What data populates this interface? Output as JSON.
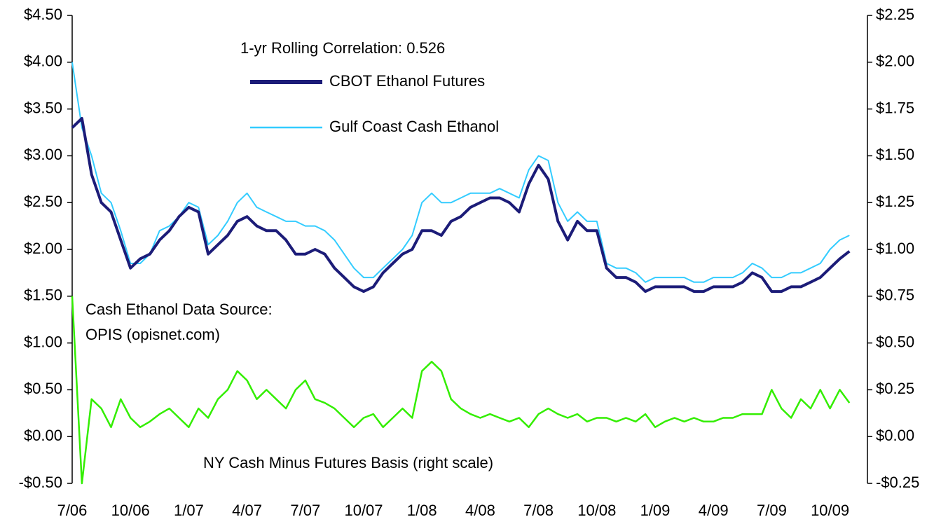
{
  "chart_data": {
    "type": "line",
    "annotations": [
      "1-yr Rolling Correlation:  0.526",
      "Cash Ethanol Data Source:",
      "OPIS (opisnet.com)"
    ],
    "categories": [
      "7/06",
      null,
      null,
      null,
      null,
      null,
      "10/06",
      null,
      null,
      null,
      null,
      null,
      "1/07",
      null,
      null,
      null,
      null,
      null,
      "4/07",
      null,
      null,
      null,
      null,
      null,
      "7/07",
      null,
      null,
      null,
      null,
      null,
      "10/07",
      null,
      null,
      null,
      null,
      null,
      "1/08",
      null,
      null,
      null,
      null,
      null,
      "4/08",
      null,
      null,
      null,
      null,
      null,
      "7/08",
      null,
      null,
      null,
      null,
      null,
      "10/08",
      null,
      null,
      null,
      null,
      null,
      "1/09",
      null,
      null,
      null,
      null,
      null,
      "4/09",
      null,
      null,
      null,
      null,
      null,
      "7/09",
      null,
      null,
      null,
      null,
      null,
      "10/09",
      null,
      null
    ],
    "series": [
      {
        "name": "CBOT Ethanol Futures",
        "color": "#1c1c78",
        "values": [
          3.3,
          3.4,
          2.8,
          2.5,
          2.4,
          2.1,
          1.8,
          1.9,
          1.95,
          2.1,
          2.2,
          2.35,
          2.45,
          2.4,
          1.95,
          2.05,
          2.15,
          2.3,
          2.35,
          2.25,
          2.2,
          2.2,
          2.1,
          1.95,
          1.95,
          2.0,
          1.95,
          1.8,
          1.7,
          1.6,
          1.55,
          1.6,
          1.75,
          1.85,
          1.95,
          2.0,
          2.2,
          2.2,
          2.15,
          2.3,
          2.35,
          2.45,
          2.5,
          2.55,
          2.55,
          2.5,
          2.4,
          2.7,
          2.9,
          2.75,
          2.3,
          2.1,
          2.3,
          2.2,
          2.2,
          1.8,
          1.7,
          1.7,
          1.65,
          1.55,
          1.6,
          1.6,
          1.6,
          1.6,
          1.55,
          1.55,
          1.6,
          1.6,
          1.6,
          1.65,
          1.75,
          1.7,
          1.55,
          1.55,
          1.6,
          1.6,
          1.65,
          1.7,
          1.8,
          1.9,
          1.98
        ]
      },
      {
        "name": "Gulf Coast Cash Ethanol",
        "color": "#33ccff",
        "values": [
          4.0,
          3.3,
          3.0,
          2.6,
          2.5,
          2.2,
          1.85,
          1.85,
          1.95,
          2.2,
          2.25,
          2.35,
          2.5,
          2.45,
          2.05,
          2.15,
          2.3,
          2.5,
          2.6,
          2.45,
          2.4,
          2.35,
          2.3,
          2.3,
          2.25,
          2.25,
          2.2,
          2.1,
          1.95,
          1.8,
          1.7,
          1.7,
          1.8,
          1.9,
          2.0,
          2.15,
          2.5,
          2.6,
          2.5,
          2.5,
          2.55,
          2.6,
          2.6,
          2.6,
          2.65,
          2.6,
          2.55,
          2.85,
          3.0,
          2.95,
          2.5,
          2.3,
          2.4,
          2.3,
          2.3,
          1.85,
          1.8,
          1.8,
          1.75,
          1.65,
          1.7,
          1.7,
          1.7,
          1.7,
          1.65,
          1.65,
          1.7,
          1.7,
          1.7,
          1.75,
          1.85,
          1.8,
          1.7,
          1.7,
          1.75,
          1.75,
          1.8,
          1.85,
          2.0,
          2.1,
          2.15
        ]
      },
      {
        "name": "NY Cash Minus Futures Basis (right scale)",
        "color": "#33ee00",
        "axis": "y2",
        "values": [
          0.75,
          -0.25,
          0.2,
          0.15,
          0.05,
          0.2,
          0.1,
          0.05,
          0.08,
          0.12,
          0.15,
          0.1,
          0.05,
          0.15,
          0.1,
          0.2,
          0.25,
          0.35,
          0.3,
          0.2,
          0.25,
          0.2,
          0.15,
          0.25,
          0.3,
          0.2,
          0.18,
          0.15,
          0.1,
          0.05,
          0.1,
          0.12,
          0.05,
          0.1,
          0.15,
          0.1,
          0.35,
          0.4,
          0.35,
          0.2,
          0.15,
          0.12,
          0.1,
          0.12,
          0.1,
          0.08,
          0.1,
          0.05,
          0.12,
          0.15,
          0.12,
          0.1,
          0.12,
          0.08,
          0.1,
          0.1,
          0.08,
          0.1,
          0.08,
          0.12,
          0.05,
          0.08,
          0.1,
          0.08,
          0.1,
          0.08,
          0.08,
          0.1,
          0.1,
          0.12,
          0.12,
          0.12,
          0.25,
          0.15,
          0.1,
          0.2,
          0.15,
          0.25,
          0.15,
          0.25,
          0.18
        ]
      }
    ],
    "ylim": [
      -0.5,
      4.5
    ],
    "yticks": [
      {
        "value": -0.5,
        "label": "-$0.50"
      },
      {
        "value": 0,
        "label": "$0.00"
      },
      {
        "value": 0.5,
        "label": "$0.50"
      },
      {
        "value": 1,
        "label": "$1.00"
      },
      {
        "value": 1.5,
        "label": "$1.50"
      },
      {
        "value": 2,
        "label": "$2.00"
      },
      {
        "value": 2.5,
        "label": "$2.50"
      },
      {
        "value": 3,
        "label": "$3.00"
      },
      {
        "value": 3.5,
        "label": "$3.50"
      },
      {
        "value": 4,
        "label": "$4.00"
      },
      {
        "value": 4.5,
        "label": "$4.50"
      }
    ],
    "y2lim": [
      -0.25,
      2.25
    ],
    "y2ticks": [
      {
        "value": -0.25,
        "label": "-$0.25"
      },
      {
        "value": 0,
        "label": "$0.00"
      },
      {
        "value": 0.25,
        "label": "$0.25"
      },
      {
        "value": 0.5,
        "label": "$0.50"
      },
      {
        "value": 0.75,
        "label": "$0.75"
      },
      {
        "value": 1,
        "label": "$1.00"
      },
      {
        "value": 1.25,
        "label": "$1.25"
      },
      {
        "value": 1.5,
        "label": "$1.50"
      },
      {
        "value": 1.75,
        "label": "$1.75"
      },
      {
        "value": 2,
        "label": "$2.00"
      },
      {
        "value": 2.25,
        "label": "$2.25"
      }
    ],
    "grid": false
  }
}
